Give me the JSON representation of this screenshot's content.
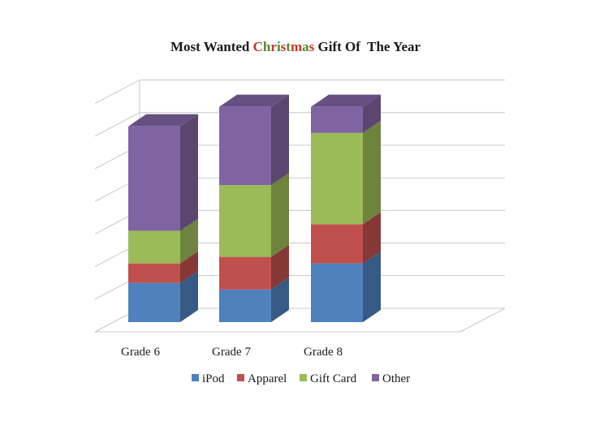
{
  "title": {
    "parts": [
      {
        "text": "Most Wanted ",
        "color": "#1a1a1a"
      },
      {
        "text": "C",
        "color": "#c0392b"
      },
      {
        "text": "h",
        "color": "#4e8a2e"
      },
      {
        "text": "r",
        "color": "#c0392b"
      },
      {
        "text": "i",
        "color": "#4e8a2e"
      },
      {
        "text": "s",
        "color": "#c0392b"
      },
      {
        "text": "t",
        "color": "#4e8a2e"
      },
      {
        "text": "m",
        "color": "#c0392b"
      },
      {
        "text": "a",
        "color": "#4e8a2e"
      },
      {
        "text": "s",
        "color": "#c0392b"
      },
      {
        "text": " Gift Of  The Year",
        "color": "#1a1a1a"
      }
    ]
  },
  "chart_data": {
    "type": "bar",
    "stacked": true,
    "three_d": true,
    "categories": [
      "Grade 6",
      "Grade 7",
      "Grade 8"
    ],
    "series": [
      {
        "name": "iPod",
        "values": [
          1.2,
          1.0,
          1.8
        ],
        "color": "#4f81bd"
      },
      {
        "name": "Apparel",
        "values": [
          0.6,
          1.0,
          1.2
        ],
        "color": "#c0504d"
      },
      {
        "name": "Gift Card",
        "values": [
          1.0,
          2.2,
          2.8
        ],
        "color": "#9bbb59"
      },
      {
        "name": "Other",
        "values": [
          3.2,
          2.4,
          0.8
        ],
        "color": "#8064a2"
      }
    ],
    "ylim": [
      0,
      7
    ],
    "grid": true,
    "legend_position": "bottom"
  }
}
